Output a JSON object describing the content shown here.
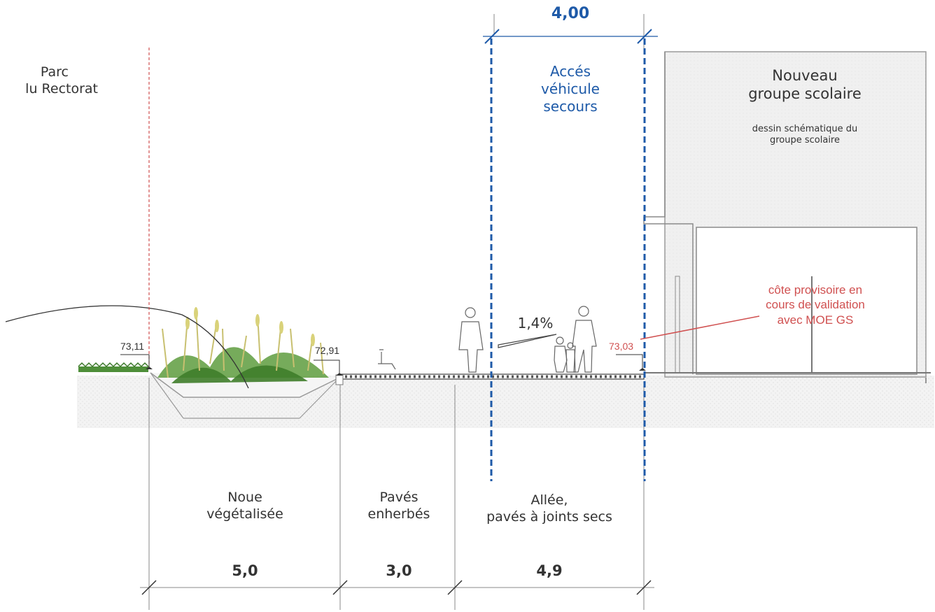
{
  "left_label": {
    "line1": "Parc",
    "line2": "lu Rectorat"
  },
  "access": {
    "width": "4,00",
    "line1": "Accés",
    "line2": "véhicule",
    "line3": "secours"
  },
  "school": {
    "title1": "Nouveau",
    "title2": "groupe scolaire",
    "sub1": "dessin schématique du",
    "sub2": "groupe scolaire"
  },
  "note": {
    "line1": "côte provisoire en",
    "line2": "cours de validation",
    "line3": "avec MOE GS"
  },
  "elevations": {
    "left": "73,11",
    "mid": "72,91",
    "right": "73,03"
  },
  "slope": "1,4%",
  "sections": [
    {
      "line1": "Noue",
      "line2": "végétalisée",
      "width": "5,0"
    },
    {
      "line1": "Pavés",
      "line2": "enherbés",
      "width": "3,0"
    },
    {
      "line1": "Allée,",
      "line2": "pavés à joints secs",
      "width": "4,9"
    }
  ],
  "colors": {
    "blue": "#1e5aa8",
    "red": "#d05050",
    "text": "#333333",
    "grass": "#4f8f3a"
  }
}
